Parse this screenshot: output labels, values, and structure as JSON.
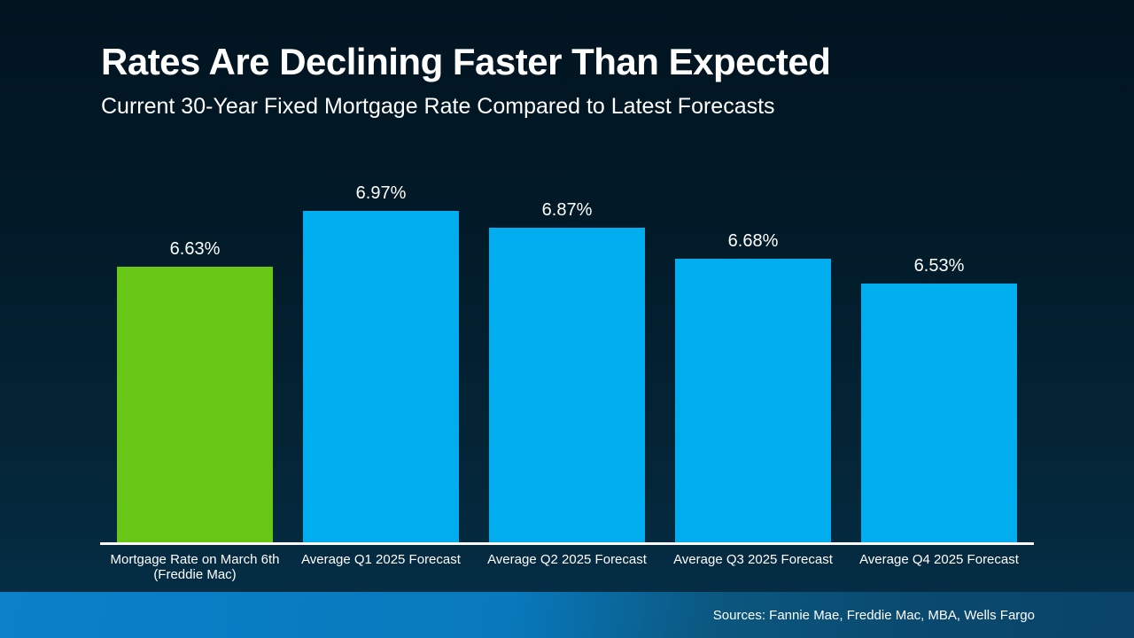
{
  "slide": {
    "title": "Rates Are Declining Faster Than Expected",
    "subtitle": "Current 30-Year Fixed Mortgage Rate Compared to Latest Forecasts",
    "footer": {
      "sources": "Sources: Fannie Mae, Freddie Mac, MBA, Wells Fargo"
    }
  },
  "colors": {
    "background_top": "#011420",
    "background_bottom": "#05304A",
    "highlight_green": "#68C716",
    "forecast_blue": "#00AEEF",
    "footer_band_left": "#0A81C9",
    "footer_band_right": "#094367",
    "text": "#FFFFFF",
    "axis_line": "#FFFFFF"
  },
  "chart_data": {
    "type": "bar",
    "title": "Rates Are Declining Faster Than Expected",
    "subtitle": "Current 30-Year Fixed Mortgage Rate Compared to Latest Forecasts",
    "categories": [
      "Mortgage Rate on March 6th\n(Freddie Mac)",
      "Average Q1 2025 Forecast",
      "Average Q2 2025 Forecast",
      "Average Q3 2025 Forecast",
      "Average Q4 2025 Forecast"
    ],
    "values": [
      6.63,
      6.97,
      6.87,
      6.68,
      6.53
    ],
    "bar_labels": [
      "6.63%",
      "6.97%",
      "6.87%",
      "6.68%",
      "6.53%"
    ],
    "bar_colors": [
      "#68C716",
      "#00AEEF",
      "#00AEEF",
      "#00AEEF",
      "#00AEEF"
    ],
    "highlight_index": 0,
    "unit": "percent",
    "xlabel": "",
    "ylabel": "",
    "ylim": [
      4.95,
      7.1
    ],
    "grid": false,
    "legend": "none",
    "y_axis_visible": false,
    "baseline_only": true
  }
}
